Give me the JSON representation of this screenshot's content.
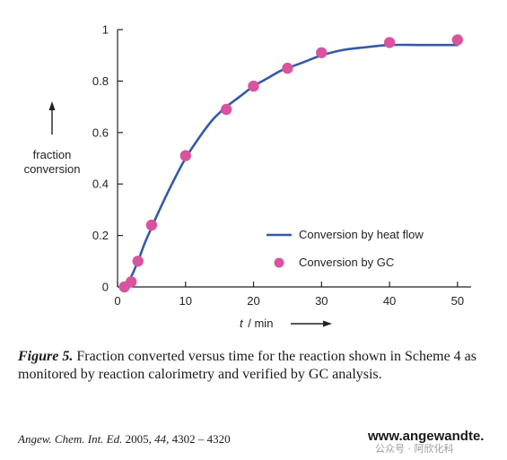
{
  "chart_data": {
    "type": "line",
    "xlabel_italic": "t",
    "xlabel_rest": "/ min",
    "ylabel_line1": "fraction",
    "ylabel_line2": "conversion",
    "xlim": [
      0,
      52
    ],
    "ylim": [
      0,
      1
    ],
    "xticks": [
      0,
      10,
      20,
      30,
      40,
      50
    ],
    "yticks": [
      0,
      0.2,
      0.4,
      0.6,
      0.8,
      1
    ],
    "ytick_labels": [
      "0",
      "0.2",
      "0.4",
      "0.6",
      "0.8",
      "1"
    ],
    "grid": false,
    "legend_position": "bottom-right",
    "series": [
      {
        "name": "Conversion by heat flow",
        "style": "line",
        "color": "#3559a6",
        "x": [
          1,
          2,
          3,
          4,
          5,
          6,
          8,
          10,
          12,
          14,
          16,
          18,
          20,
          22,
          24,
          26,
          28,
          30,
          33,
          36,
          40,
          45,
          50
        ],
        "y": [
          0,
          0.04,
          0.1,
          0.17,
          0.23,
          0.29,
          0.4,
          0.5,
          0.58,
          0.65,
          0.7,
          0.74,
          0.78,
          0.81,
          0.84,
          0.86,
          0.88,
          0.9,
          0.92,
          0.93,
          0.94,
          0.94,
          0.94
        ]
      },
      {
        "name": "Conversion by GC",
        "style": "marker",
        "color": "#d8549f",
        "x": [
          1,
          2,
          3,
          5,
          10,
          16,
          20,
          25,
          30,
          40,
          50
        ],
        "y": [
          0.0,
          0.02,
          0.1,
          0.24,
          0.51,
          0.69,
          0.78,
          0.85,
          0.91,
          0.95,
          0.96
        ]
      }
    ]
  },
  "caption": {
    "label": "Figure 5.",
    "text": "Fraction converted versus time for the reaction shown in Scheme 4 as monitored by reaction calorimetry and verified by GC analysis."
  },
  "citation": {
    "journal": "Angew. Chem. Int. Ed.",
    "year": "2005,",
    "volume": "44,",
    "pages": "4302 – 4320"
  },
  "site_url": "www.angewandte.",
  "watermark": "公众号 · 阿欣化科"
}
